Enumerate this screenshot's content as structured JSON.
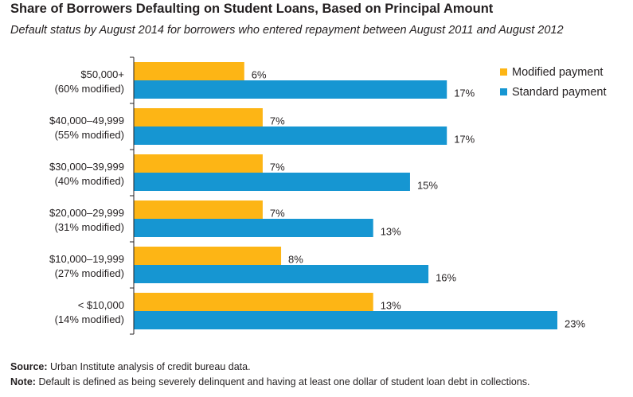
{
  "title": "Share of Borrowers Defaulting on Student Loans, Based on Principal Amount",
  "subtitle": "Default status by August 2014 for borrowers who entered repayment between August 2011 and August 2012",
  "colors": {
    "modified": "#fdb515",
    "standard": "#1696d2",
    "axis": "#231f20"
  },
  "legend": [
    {
      "label": "Modified payment",
      "color": "#fdb515"
    },
    {
      "label": "Standard payment",
      "color": "#1696d2"
    }
  ],
  "chart_data": {
    "type": "bar",
    "orientation": "horizontal",
    "categories": [
      [
        "$50,000+",
        "(60% modified)"
      ],
      [
        "$40,000–49,999",
        "(55% modified)"
      ],
      [
        "$30,000–39,999",
        "(40% modified)"
      ],
      [
        "$20,000–29,999",
        "(31% modified)"
      ],
      [
        "$10,000–19,999",
        "(27% modified)"
      ],
      [
        "< $10,000",
        "(14% modified)"
      ]
    ],
    "series": [
      {
        "name": "Modified payment",
        "values": [
          6,
          7,
          7,
          7,
          8,
          13
        ],
        "labels": [
          "6%",
          "7%",
          "7%",
          "7%",
          "8%",
          "13%"
        ]
      },
      {
        "name": "Standard payment",
        "values": [
          17,
          17,
          15,
          13,
          16,
          23
        ],
        "labels": [
          "17%",
          "17%",
          "15%",
          "13%",
          "16%",
          "23%"
        ]
      }
    ],
    "xlim": [
      0,
      23
    ],
    "grid": false,
    "legend_position": "top-right"
  },
  "footer": {
    "source_label": "Source:",
    "source_text": "Urban Institute analysis of credit bureau data.",
    "note_label": "Note:",
    "note_text": "Default is defined as being severely delinquent and having at least one dollar of student loan debt in collections."
  }
}
